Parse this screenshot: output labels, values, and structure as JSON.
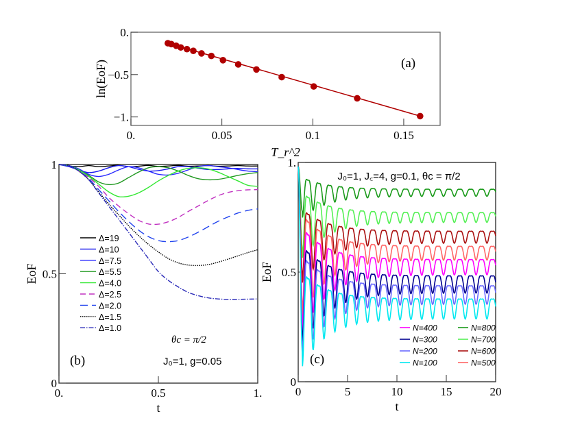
{
  "chart_data": [
    {
      "panel": "(a)",
      "type": "scatter",
      "xlabel": "T_r^2",
      "ylabel": "ln(EoF)",
      "xlim": [
        0,
        0.17
      ],
      "ylim": [
        -1.1,
        0.0
      ],
      "xticks": [
        {
          "v": 0,
          "label": "0."
        },
        {
          "v": 0.05,
          "label": "0.05"
        },
        {
          "v": 0.1,
          "label": "0.1"
        },
        {
          "v": 0.15,
          "label": "0.15"
        }
      ],
      "yticks": [
        {
          "v": 0,
          "label": "0."
        },
        {
          "v": -0.5,
          "label": "−0.5"
        },
        {
          "v": -1,
          "label": "−1."
        }
      ],
      "marker_color": "#b00000",
      "points": [
        [
          0.0203,
          -0.13
        ],
        [
          0.0222,
          -0.14
        ],
        [
          0.0249,
          -0.16
        ],
        [
          0.0274,
          -0.18
        ],
        [
          0.0308,
          -0.2
        ],
        [
          0.0343,
          -0.22
        ],
        [
          0.0388,
          -0.25
        ],
        [
          0.0442,
          -0.28
        ],
        [
          0.0506,
          -0.33
        ],
        [
          0.059,
          -0.38
        ],
        [
          0.069,
          -0.44
        ],
        [
          0.0829,
          -0.53
        ],
        [
          0.1005,
          -0.64
        ],
        [
          0.1244,
          -0.78
        ],
        [
          0.159,
          -0.99
        ]
      ],
      "fit_line": {
        "slope": -6.2,
        "intercept": -0.004
      }
    },
    {
      "panel": "(b)",
      "type": "line",
      "xlabel": "t",
      "ylabel": "EoF",
      "xlim": [
        0,
        1
      ],
      "ylim": [
        0,
        1
      ],
      "xticks": [
        {
          "v": 0,
          "label": "0."
        },
        {
          "v": 0.5,
          "label": "0.5"
        },
        {
          "v": 1,
          "label": "1."
        }
      ],
      "yticks": [
        {
          "v": 0,
          "label": "0"
        },
        {
          "v": 0.5,
          "label": "0.5"
        },
        {
          "v": 1,
          "label": "1"
        }
      ],
      "annotations": [
        "θc = π/2",
        "J₀=1, g=0.05"
      ],
      "x": [
        0,
        0.05,
        0.1,
        0.15,
        0.2,
        0.25,
        0.3,
        0.35,
        0.4,
        0.45,
        0.5,
        0.55,
        0.6,
        0.65,
        0.7,
        0.75,
        0.8,
        0.85,
        0.9,
        0.95,
        1.0
      ],
      "series": [
        {
          "name": "Δ=19",
          "color": "#000000",
          "style": "solid",
          "values": [
            1,
            0.993,
            0.99,
            0.995,
            0.99,
            0.993,
            0.996,
            0.99,
            0.992,
            0.996,
            0.991,
            0.993,
            0.996,
            0.992,
            0.993,
            0.995,
            0.992,
            0.993,
            0.995,
            0.993,
            0.993
          ]
        },
        {
          "name": "Δ=10",
          "color": "#1a1aee",
          "style": "solid",
          "values": [
            1,
            0.99,
            0.975,
            0.963,
            0.97,
            0.985,
            0.995,
            0.99,
            0.978,
            0.97,
            0.972,
            0.98,
            0.99,
            0.99,
            0.983,
            0.977,
            0.977,
            0.98,
            0.982,
            0.98,
            0.98
          ]
        },
        {
          "name": "Δ=7.5",
          "color": "#2a2aff",
          "style": "solid",
          "values": [
            1,
            0.995,
            0.98,
            0.955,
            0.945,
            0.955,
            0.975,
            0.99,
            0.985,
            0.97,
            0.955,
            0.952,
            0.96,
            0.975,
            0.99,
            0.995,
            0.99,
            0.985,
            0.977,
            0.97,
            0.967
          ]
        },
        {
          "name": "Δ=5.5",
          "color": "#229922",
          "style": "solid",
          "values": [
            1,
            0.995,
            0.975,
            0.95,
            0.92,
            0.908,
            0.915,
            0.94,
            0.965,
            0.985,
            0.99,
            0.985,
            0.97,
            0.95,
            0.935,
            0.93,
            0.932,
            0.94,
            0.95,
            0.958,
            0.963
          ]
        },
        {
          "name": "Δ=4.0",
          "color": "#33e833",
          "style": "solid",
          "values": [
            1,
            0.995,
            0.975,
            0.945,
            0.91,
            0.875,
            0.853,
            0.855,
            0.87,
            0.895,
            0.925,
            0.95,
            0.97,
            0.982,
            0.985,
            0.98,
            0.965,
            0.945,
            0.925,
            0.905,
            0.9
          ]
        },
        {
          "name": "Δ=2.5",
          "color": "#c030c0",
          "style": "dash",
          "values": [
            1,
            0.995,
            0.97,
            0.94,
            0.9,
            0.85,
            0.81,
            0.775,
            0.745,
            0.728,
            0.727,
            0.738,
            0.758,
            0.785,
            0.81,
            0.835,
            0.857,
            0.872,
            0.88,
            0.884,
            0.885
          ]
        },
        {
          "name": "Δ=2.0",
          "color": "#2244ee",
          "style": "longdash",
          "values": [
            1,
            0.995,
            0.97,
            0.935,
            0.885,
            0.835,
            0.785,
            0.74,
            0.7,
            0.67,
            0.652,
            0.647,
            0.652,
            0.668,
            0.69,
            0.715,
            0.74,
            0.76,
            0.778,
            0.79,
            0.797
          ]
        },
        {
          "name": "Δ=1.5",
          "color": "#000000",
          "style": "dot",
          "values": [
            1,
            0.995,
            0.97,
            0.93,
            0.875,
            0.82,
            0.77,
            0.72,
            0.675,
            0.635,
            0.6,
            0.57,
            0.55,
            0.54,
            0.538,
            0.542,
            0.553,
            0.567,
            0.582,
            0.597,
            0.61
          ]
        },
        {
          "name": "Δ=1.0",
          "color": "#2a2ab8",
          "style": "dashdot",
          "values": [
            1,
            0.995,
            0.97,
            0.93,
            0.87,
            0.81,
            0.75,
            0.69,
            0.63,
            0.57,
            0.51,
            0.47,
            0.44,
            0.415,
            0.4,
            0.39,
            0.385,
            0.383,
            0.383,
            0.384,
            0.385
          ]
        }
      ]
    },
    {
      "panel": "(c)",
      "type": "line",
      "xlabel": "t",
      "ylabel": "EoF",
      "xlim": [
        0,
        20
      ],
      "ylim": [
        0,
        1
      ],
      "xticks": [
        {
          "v": 0,
          "label": "0"
        },
        {
          "v": 5,
          "label": "5"
        },
        {
          "v": 10,
          "label": "10"
        },
        {
          "v": 15,
          "label": "15"
        },
        {
          "v": 20,
          "label": "20"
        }
      ],
      "yticks": [
        {
          "v": 0,
          "label": "0"
        },
        {
          "v": 0.5,
          "label": "0.5"
        },
        {
          "v": 1,
          "label": "1."
        }
      ],
      "annotations": [
        "J₀=1, J꜀=4, g=0.1, θc = π/2"
      ],
      "series": [
        {
          "name": "N=400",
          "color": "#ff00ff",
          "first_minimum": 0.3,
          "steady_value": 0.543
        },
        {
          "name": "N=300",
          "color": "#000090",
          "first_minimum": 0.23,
          "steady_value": 0.464
        },
        {
          "name": "N=200",
          "color": "#6a6aff",
          "first_minimum": 0.18,
          "steady_value": 0.416
        },
        {
          "name": "N=100",
          "color": "#00e8f0",
          "first_minimum": 0.135,
          "steady_value": 0.352
        },
        {
          "name": "N=800",
          "color": "#1a9a1a",
          "first_minimum": 0.79,
          "steady_value": 0.883
        },
        {
          "name": "N=700",
          "color": "#55f055",
          "first_minimum": 0.62,
          "steady_value": 0.77
        },
        {
          "name": "N=600",
          "color": "#aa1111",
          "first_minimum": 0.51,
          "steady_value": 0.68
        },
        {
          "name": "N=500",
          "color": "#ff6666",
          "first_minimum": 0.37,
          "steady_value": 0.607
        }
      ]
    }
  ]
}
